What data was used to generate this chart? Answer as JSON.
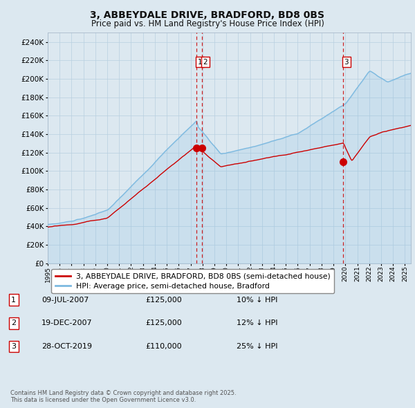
{
  "title_line1": "3, ABBEYDALE DRIVE, BRADFORD, BD8 0BS",
  "title_line2": "Price paid vs. HM Land Registry's House Price Index (HPI)",
  "hpi_color": "#7cb9e0",
  "price_color": "#cc0000",
  "fig_bg_color": "#dce8f0",
  "plot_bg_color": "#dce8f0",
  "grid_color": "#b8cfe0",
  "ylim": [
    0,
    250000
  ],
  "ytick_step": 20000,
  "xlim_start": 1995,
  "xlim_end": 2025.5,
  "legend_label_red": "3, ABBEYDALE DRIVE, BRADFORD, BD8 0BS (semi-detached house)",
  "legend_label_blue": "HPI: Average price, semi-detached house, Bradford",
  "transactions": [
    {
      "num": 1,
      "date": "09-JUL-2007",
      "price": 125000,
      "price_str": "£125,000",
      "pct": "10%",
      "direction": "↓",
      "year": 2007.5
    },
    {
      "num": 2,
      "date": "19-DEC-2007",
      "price": 125000,
      "price_str": "£125,000",
      "pct": "12%",
      "direction": "↓",
      "year": 2007.95
    },
    {
      "num": 3,
      "date": "28-OCT-2019",
      "price": 110000,
      "price_str": "£110,000",
      "pct": "25%",
      "direction": "↓",
      "year": 2019.8
    }
  ],
  "footnote_line1": "Contains HM Land Registry data © Crown copyright and database right 2025.",
  "footnote_line2": "This data is licensed under the Open Government Licence v3.0."
}
